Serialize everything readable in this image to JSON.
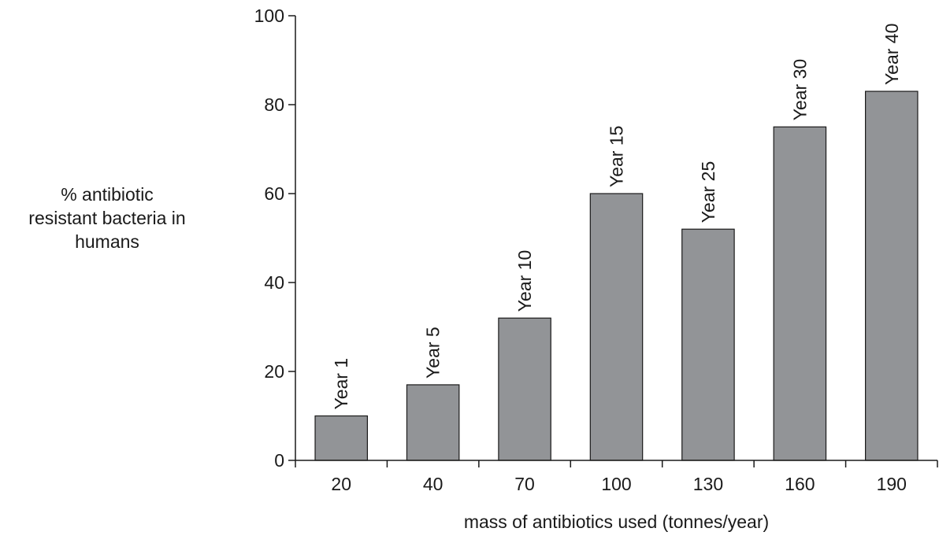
{
  "chart_data": {
    "type": "bar",
    "categories": [
      "20",
      "40",
      "70",
      "100",
      "130",
      "160",
      "190"
    ],
    "values": [
      10,
      17,
      32,
      60,
      52,
      75,
      83
    ],
    "bar_labels": [
      "Year 1",
      "Year 5",
      "Year 10",
      "Year 15",
      "Year 25",
      "Year 30",
      "Year 40"
    ],
    "title": "",
    "xlabel": "mass of antibiotics used (tonnes/year)",
    "ylabel_lines": [
      "% antibiotic",
      "resistant bacteria in",
      "humans"
    ],
    "ylim": [
      0,
      100
    ],
    "yticks": [
      0,
      20,
      40,
      60,
      80,
      100
    ],
    "grid": false,
    "bar_color": "#929497",
    "edge_color": "#1a1a1a"
  }
}
